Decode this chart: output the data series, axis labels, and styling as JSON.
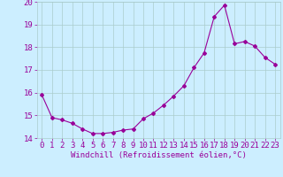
{
  "x_data": [
    0,
    1,
    2,
    3,
    4,
    5,
    6,
    7,
    8,
    9,
    10,
    11,
    12,
    13,
    14,
    15,
    16,
    17,
    18,
    19,
    20,
    21,
    22,
    23
  ],
  "y_data": [
    15.9,
    14.9,
    14.8,
    14.65,
    14.4,
    14.2,
    14.2,
    14.25,
    14.35,
    14.4,
    14.85,
    15.1,
    15.45,
    15.85,
    16.3,
    17.1,
    17.75,
    19.35,
    19.85,
    18.15,
    18.25,
    18.05,
    17.55,
    17.25
  ],
  "line_color": "#990099",
  "marker": "D",
  "marker_size": 2.0,
  "bg_color": "#cceeff",
  "grid_color": "#aacccc",
  "xlabel": "Windchill (Refroidissement éolien,°C)",
  "ylim": [
    14,
    20
  ],
  "xlim": [
    -0.5,
    23.5
  ],
  "yticks": [
    14,
    15,
    16,
    17,
    18,
    19,
    20
  ],
  "xticks": [
    0,
    1,
    2,
    3,
    4,
    5,
    6,
    7,
    8,
    9,
    10,
    11,
    12,
    13,
    14,
    15,
    16,
    17,
    18,
    19,
    20,
    21,
    22,
    23
  ],
  "xlabel_fontsize": 6.5,
  "tick_fontsize": 6.5,
  "axis_color": "#990099"
}
